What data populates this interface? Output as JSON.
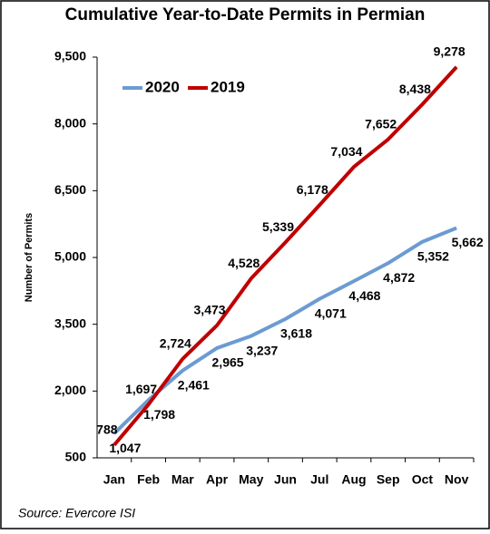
{
  "chart_data": {
    "type": "line",
    "title": "Cumulative Year-to-Date Permits in Permian",
    "y_label": "Number of Permits",
    "source": "Source: Evercore ISI",
    "categories": [
      "Jan",
      "Feb",
      "Mar",
      "Apr",
      "May",
      "Jun",
      "Jul",
      "Aug",
      "Sep",
      "Oct",
      "Nov"
    ],
    "series": [
      {
        "name": "2020",
        "color": "#6b9bd2",
        "values": [
          1047,
          1798,
          2461,
          2965,
          3237,
          3618,
          4071,
          4468,
          4872,
          5352,
          5662
        ],
        "value_labels": [
          "1,047",
          "1,798",
          "2,461",
          "2,965",
          "3,237",
          "3,618",
          "4,071",
          "4,468",
          "4,872",
          "5,352",
          "5,662"
        ]
      },
      {
        "name": "2019",
        "color": "#c00000",
        "values": [
          788,
          1697,
          2724,
          3473,
          4528,
          5339,
          6178,
          7034,
          7652,
          8438,
          9278
        ],
        "value_labels": [
          "788",
          "1,697",
          "2,724",
          "3,473",
          "4,528",
          "5,339",
          "6,178",
          "7,034",
          "7,652",
          "8,438",
          "9,278"
        ]
      }
    ],
    "ylim": [
      500,
      9500
    ],
    "yticks": [
      500,
      {
        "value": 2000,
        "label": "2,000"
      },
      {
        "value": 3500,
        "label": "3,500"
      },
      {
        "value": 5000,
        "label": "5,000"
      },
      {
        "value": 6500,
        "label": "6,500"
      },
      {
        "value": 8000,
        "label": "8,000"
      },
      {
        "value": 9500,
        "label": "9,500"
      }
    ],
    "legend": "top-left",
    "grid": false
  }
}
